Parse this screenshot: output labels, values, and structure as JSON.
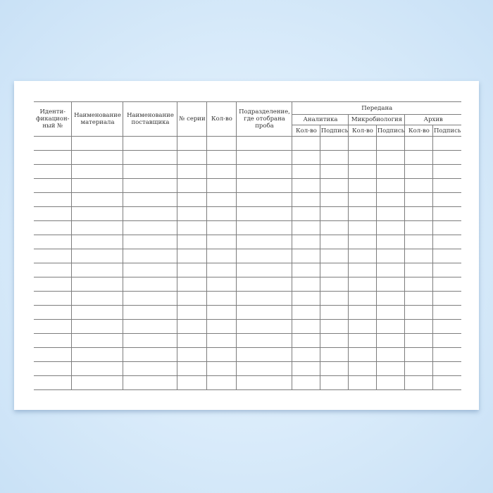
{
  "form": {
    "headers": {
      "id": "Иденти-фикацион-ный №",
      "material": "Наименование материала",
      "supplier": "Наименование поставщика",
      "series": "№ серии",
      "qty": "Кол-во",
      "division": "Подразделение, где отобрана проба",
      "transferred": "Передана",
      "groups": [
        "Аналитика",
        "Микробиология",
        "Архив"
      ],
      "sub_qty": "Кол-во",
      "sub_sign": "Подпись"
    },
    "empty_rows": 18
  }
}
